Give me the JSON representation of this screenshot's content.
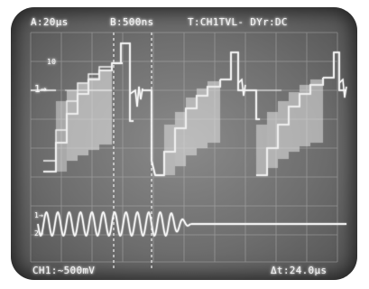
{
  "header": {
    "horizontal_a": "A:20µs",
    "horizontal_b": "B:500ns",
    "trigger": "T:CH1TVL- DYr:DC"
  },
  "footer": {
    "ch1_scale": "CH1:~500mV",
    "delta_time": "Δt:24.0µs"
  },
  "markers": {
    "top_left_label": "1→",
    "top_small": "10",
    "lower_small_1": "1→",
    "lower_small_2": "2→"
  },
  "colors": {
    "screen": "#6e6e6e",
    "trace": "#f4f4f4",
    "grid": "#b8b8b8"
  }
}
